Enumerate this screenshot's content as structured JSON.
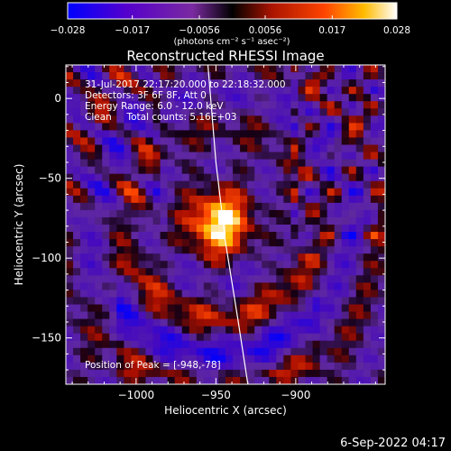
{
  "chart_data": {
    "type": "heatmap",
    "title": "Reconstructed RHESSI Image",
    "xlabel": "Heliocentric X (arcsec)",
    "ylabel": "Heliocentric Y (arcsec)",
    "xlim": [
      -1044,
      -844
    ],
    "ylim": [
      -179,
      21
    ],
    "x_ticks": [
      -1000,
      -950,
      -900
    ],
    "x_tick_labels": [
      "−1000",
      "−950",
      "−900"
    ],
    "y_ticks": [
      0,
      -50,
      -100,
      -150
    ],
    "y_tick_labels": [
      "0",
      "−50",
      "−100",
      "−150"
    ],
    "colorbar": {
      "range": [
        -0.028,
        0.028
      ],
      "ticks": [
        -0.028,
        -0.017,
        -0.0056,
        0.0056,
        0.017,
        0.028
      ],
      "tick_labels": [
        "−0.028",
        "−0.017",
        "−0.0056",
        "0.0056",
        "0.017",
        "0.028"
      ],
      "unit_label": "(photons cm⁻² s⁻¹ asec⁻²)",
      "colors": [
        "#0000ff",
        "#5500cc",
        "#7a2aa0",
        "#000000",
        "#cc1a00",
        "#ff6600",
        "#ffcc00",
        "#ffffff"
      ]
    },
    "info_lines": [
      "31-Jul-2017 22:17:20.000 to 22:18:32.000",
      "Detectors: 3F 6F 8F, Att 0",
      "Energy Range: 6.0 - 12.0 keV",
      "Clean     Total counts: 5.16E+03"
    ],
    "peak_label": "Position of Peak = [-948,-78]",
    "peak_position": [
      -948,
      -78
    ],
    "limb_arc": [
      [
        -955,
        21
      ],
      [
        -950,
        -40
      ],
      [
        -944,
        -90
      ],
      [
        -936,
        -140
      ],
      [
        -930,
        -179
      ]
    ]
  },
  "footer": {
    "timestamp": "6-Sep-2022 04:17"
  }
}
